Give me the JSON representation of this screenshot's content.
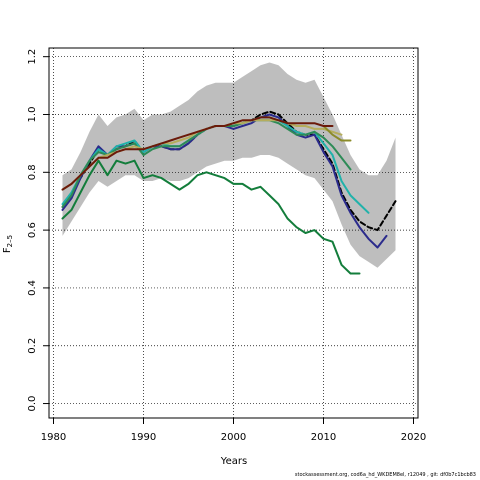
{
  "chart_data": {
    "type": "line",
    "xlabel": "Years",
    "ylabel": "F",
    "ylabel_subscript": "2–5",
    "xlim": [
      1979.5,
      2020.5
    ],
    "ylim": [
      -0.05,
      1.23
    ],
    "x_ticks": [
      1980,
      1990,
      2000,
      2010,
      2020
    ],
    "x_tick_labels": [
      "1980",
      "1990",
      "2000",
      "2010",
      "2020"
    ],
    "y_ticks": [
      0.0,
      0.2,
      0.4,
      0.6,
      0.8,
      1.0,
      1.2
    ],
    "y_tick_labels": [
      "0.0",
      "0.2",
      "0.4",
      "0.6",
      "0.8",
      "1.0",
      "1.2"
    ],
    "grid": "dotted",
    "band": {
      "x": [
        1981,
        1982,
        1983,
        1984,
        1985,
        1986,
        1987,
        1988,
        1989,
        1990,
        1991,
        1992,
        1993,
        1994,
        1995,
        1996,
        1997,
        1998,
        1999,
        2000,
        2001,
        2002,
        2003,
        2004,
        2005,
        2006,
        2007,
        2008,
        2009,
        2010,
        2011,
        2012,
        2013,
        2014,
        2015,
        2016,
        2017,
        2018
      ],
      "upper": [
        0.79,
        0.81,
        0.87,
        0.94,
        1.0,
        0.96,
        0.99,
        1.0,
        1.02,
        0.98,
        1.0,
        1.0,
        1.01,
        1.03,
        1.05,
        1.08,
        1.1,
        1.11,
        1.11,
        1.11,
        1.13,
        1.15,
        1.17,
        1.18,
        1.17,
        1.14,
        1.12,
        1.11,
        1.12,
        1.06,
        1.0,
        0.93,
        0.86,
        0.81,
        0.79,
        0.79,
        0.84,
        0.92
      ],
      "lower": [
        0.58,
        0.63,
        0.68,
        0.73,
        0.77,
        0.75,
        0.77,
        0.79,
        0.79,
        0.77,
        0.77,
        0.78,
        0.77,
        0.77,
        0.78,
        0.8,
        0.82,
        0.83,
        0.84,
        0.84,
        0.85,
        0.85,
        0.86,
        0.86,
        0.85,
        0.83,
        0.81,
        0.79,
        0.78,
        0.74,
        0.7,
        0.62,
        0.55,
        0.51,
        0.49,
        0.47,
        0.5,
        0.53
      ],
      "color": "#bebebe"
    },
    "series": [
      {
        "color": "#000000",
        "dash": "5,3",
        "x": [
          1981,
          1982,
          1983,
          1984,
          1985,
          1986,
          1987,
          1988,
          1989,
          1990,
          1991,
          1992,
          1993,
          1994,
          1995,
          1996,
          1997,
          1998,
          1999,
          2000,
          2001,
          2002,
          2003,
          2004,
          2005,
          2006,
          2007,
          2008,
          2009,
          2010,
          2011,
          2012,
          2013,
          2014,
          2015,
          2016,
          2017,
          2018
        ],
        "y": [
          0.68,
          0.72,
          0.78,
          0.83,
          0.88,
          0.86,
          0.88,
          0.89,
          0.91,
          0.87,
          0.89,
          0.89,
          0.88,
          0.88,
          0.9,
          0.93,
          0.95,
          0.96,
          0.96,
          0.96,
          0.97,
          0.98,
          1.0,
          1.01,
          1.0,
          0.97,
          0.94,
          0.93,
          0.93,
          0.88,
          0.83,
          0.73,
          0.67,
          0.63,
          0.61,
          0.6,
          0.65,
          0.7
        ]
      },
      {
        "color": "#2b2b8c",
        "dash": "",
        "x": [
          1981,
          1982,
          1983,
          1984,
          1985,
          1986,
          1987,
          1988,
          1989,
          1990,
          1991,
          1992,
          1993,
          1994,
          1995,
          1996,
          1997,
          1998,
          1999,
          2000,
          2001,
          2002,
          2003,
          2004,
          2005,
          2006,
          2007,
          2008,
          2009,
          2010,
          2011,
          2012,
          2013,
          2014,
          2015,
          2016,
          2017
        ],
        "y": [
          0.67,
          0.71,
          0.78,
          0.84,
          0.89,
          0.86,
          0.89,
          0.89,
          0.9,
          0.87,
          0.89,
          0.89,
          0.88,
          0.88,
          0.9,
          0.93,
          0.95,
          0.96,
          0.96,
          0.95,
          0.96,
          0.97,
          0.99,
          1.0,
          0.99,
          0.96,
          0.93,
          0.92,
          0.93,
          0.87,
          0.82,
          0.72,
          0.66,
          0.61,
          0.57,
          0.54,
          0.58
        ]
      },
      {
        "color": "#20b2aa",
        "dash": "",
        "x": [
          1981,
          1982,
          1983,
          1984,
          1985,
          1986,
          1987,
          1988,
          1989,
          1990,
          1991,
          1992,
          1993,
          1994,
          1995,
          1996,
          1997,
          1998,
          1999,
          2000,
          2001,
          2002,
          2003,
          2004,
          2005,
          2006,
          2007,
          2008,
          2009,
          2010,
          2011,
          2012,
          2013,
          2014,
          2015
        ],
        "y": [
          0.69,
          0.73,
          0.79,
          0.84,
          0.88,
          0.86,
          0.89,
          0.9,
          0.91,
          0.87,
          0.89,
          0.9,
          0.89,
          0.89,
          0.91,
          0.93,
          0.95,
          0.96,
          0.96,
          0.96,
          0.97,
          0.98,
          0.99,
          0.99,
          0.98,
          0.96,
          0.94,
          0.93,
          0.94,
          0.9,
          0.86,
          0.77,
          0.72,
          0.69,
          0.66
        ]
      },
      {
        "color": "#2e8b57",
        "dash": "",
        "x": [
          1981,
          1982,
          1983,
          1984,
          1985,
          1986,
          1987,
          1988,
          1989,
          1990,
          1991,
          1992,
          1993,
          1994,
          1995,
          1996,
          1997,
          1998,
          1999,
          2000,
          2001,
          2002,
          2003,
          2004,
          2005,
          2006,
          2007,
          2008,
          2009,
          2010,
          2011,
          2012,
          2013
        ],
        "y": [
          0.68,
          0.72,
          0.79,
          0.84,
          0.87,
          0.86,
          0.88,
          0.89,
          0.9,
          0.86,
          0.88,
          0.89,
          0.89,
          0.89,
          0.91,
          0.93,
          0.95,
          0.96,
          0.96,
          0.96,
          0.97,
          0.98,
          0.98,
          0.98,
          0.97,
          0.95,
          0.93,
          0.93,
          0.94,
          0.92,
          0.89,
          0.85,
          0.81
        ]
      },
      {
        "color": "#b5ad5c",
        "dash": "",
        "x": [
          1981,
          1982,
          1983,
          1984,
          1985,
          1986,
          1987,
          1988,
          1989,
          1990,
          1991,
          1992,
          1993,
          1994,
          1995,
          1996,
          1997,
          1998,
          1999,
          2000,
          2001,
          2002,
          2003,
          2004,
          2005,
          2006,
          2007,
          2008,
          2009,
          2010,
          2011,
          2012
        ],
        "y": [
          0.74,
          0.76,
          0.79,
          0.82,
          0.85,
          0.86,
          0.87,
          0.88,
          0.89,
          0.88,
          0.89,
          0.9,
          0.9,
          0.91,
          0.92,
          0.94,
          0.95,
          0.96,
          0.96,
          0.97,
          0.97,
          0.98,
          0.98,
          0.98,
          0.98,
          0.97,
          0.96,
          0.96,
          0.95,
          0.95,
          0.94,
          0.93
        ]
      },
      {
        "color": "#8b8b2a",
        "dash": "",
        "x": [
          2010,
          2011,
          2012,
          2013
        ],
        "y": [
          0.96,
          0.93,
          0.91,
          0.91
        ]
      },
      {
        "color": "#137d3b",
        "dash": "",
        "x": [
          1981,
          1982,
          1983,
          1984,
          1985,
          1986,
          1987,
          1988,
          1989,
          1990,
          1991,
          1992,
          1993,
          1994,
          1995,
          1996,
          1997,
          1998,
          1999,
          2000,
          2001,
          2002,
          2003,
          2004,
          2005,
          2006,
          2007,
          2008,
          2009,
          2010,
          2011,
          2012,
          2013,
          2014
        ],
        "y": [
          0.64,
          0.67,
          0.73,
          0.79,
          0.84,
          0.79,
          0.84,
          0.83,
          0.84,
          0.78,
          0.79,
          0.78,
          0.76,
          0.74,
          0.76,
          0.79,
          0.8,
          0.79,
          0.78,
          0.76,
          0.76,
          0.74,
          0.75,
          0.72,
          0.69,
          0.64,
          0.61,
          0.59,
          0.6,
          0.57,
          0.56,
          0.48,
          0.45,
          0.45
        ]
      },
      {
        "color": "#6b1a0a",
        "dash": "",
        "x": [
          1981,
          1982,
          1983,
          1984,
          1985,
          1986,
          1987,
          1988,
          1989,
          1990,
          1991,
          1992,
          1993,
          1994,
          1995,
          1996,
          1997,
          1998,
          1999,
          2000,
          2001,
          2002,
          2003,
          2004,
          2005,
          2006,
          2007,
          2008,
          2009,
          2010,
          2011
        ],
        "y": [
          0.74,
          0.76,
          0.79,
          0.82,
          0.85,
          0.85,
          0.87,
          0.88,
          0.88,
          0.88,
          0.89,
          0.9,
          0.91,
          0.92,
          0.93,
          0.94,
          0.95,
          0.96,
          0.96,
          0.97,
          0.98,
          0.98,
          0.99,
          0.99,
          0.98,
          0.97,
          0.97,
          0.97,
          0.97,
          0.96,
          0.96
        ]
      }
    ]
  },
  "footer": "stockassessment.org, cod6a_hd_WKDEM8el, r12049 , git: df0b7c1bcb83"
}
